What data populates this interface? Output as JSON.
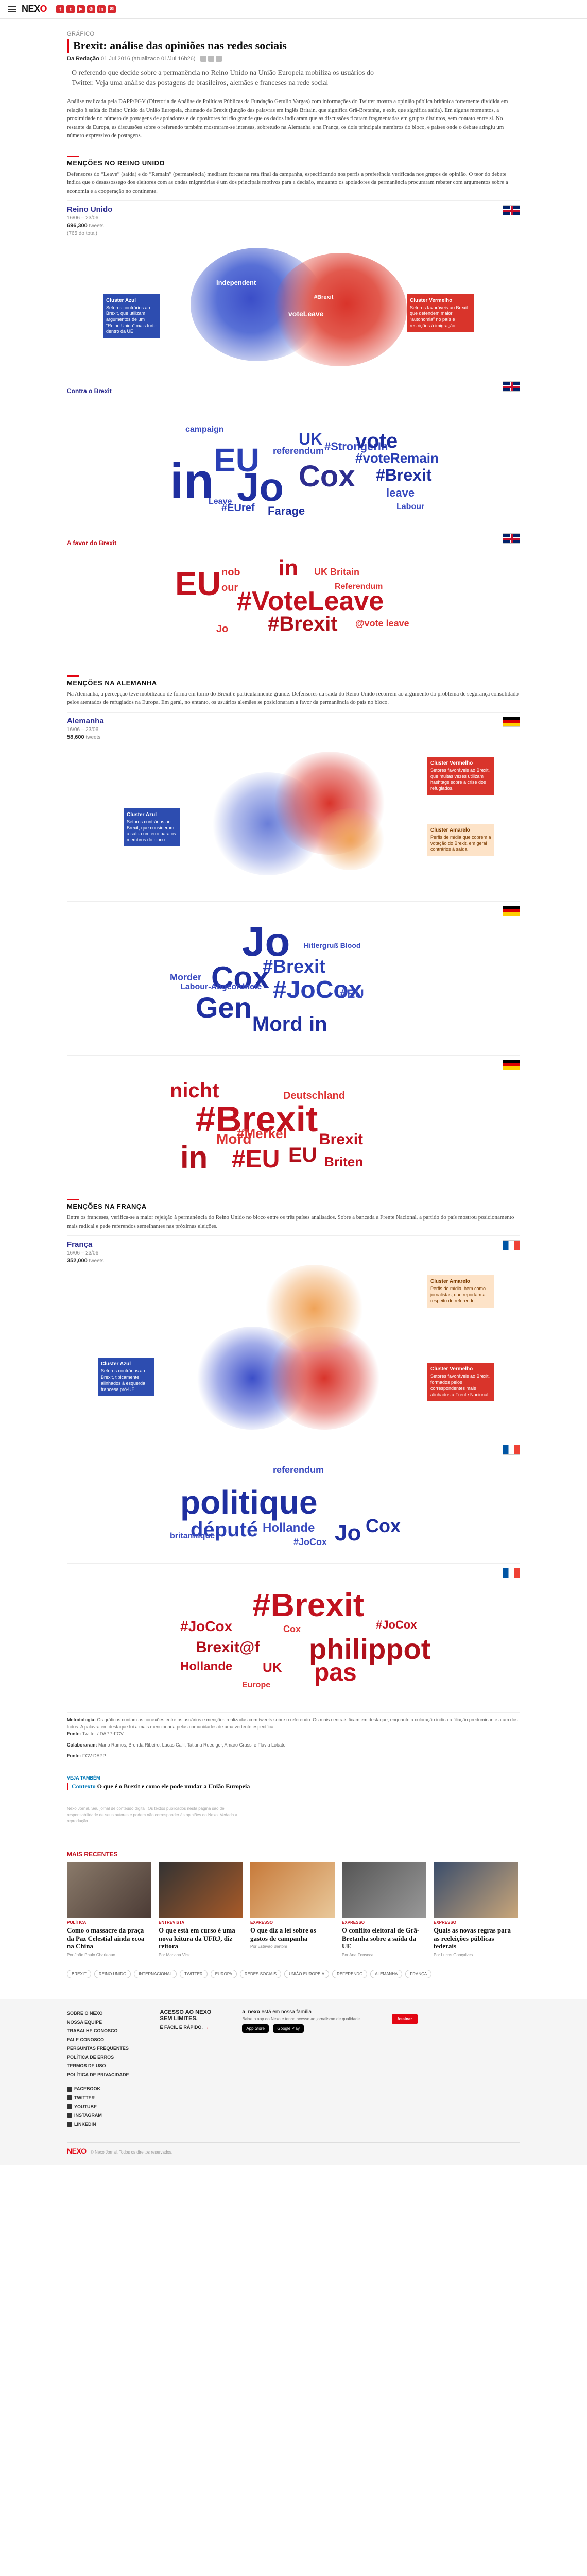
{
  "header": {
    "logo_main": "NEX",
    "logo_accent": "O",
    "social": [
      "f",
      "t",
      "▶",
      "◎",
      "in",
      "✉"
    ]
  },
  "article": {
    "kicker": "GRÁFICO",
    "title": "Brexit: análise das opiniões nas redes sociais",
    "byline_prefix": "Da Redação",
    "byline_date": "01 Jul 2016",
    "byline_updated": "(atualizado 01/Jul 16h26)",
    "lead": "O referendo que decide sobre a permanência no Reino Unido na União Europeia mobiliza os usuários do Twitter. Veja uma análise das postagens de brasileiros, alemães e franceses na rede social",
    "intro": "Análise realizada pela DAPP/FGV (Diretoria de Análise de Políticas Públicas da Fundação Getulio Vargas) com informações do Twitter mostra a opinião pública britânica fortemente dividida em relação à saída do Reino Unido da União Europeia, chamado de Brexit (junção das palavras em inglês Britain, que significa Grã-Bretanha, e exit, que significa saída). Em alguns momentos, a proximidade no número de postagens de apoiadores e de opositores foi tão grande que os dados indicaram que as discussões ficaram fragmentadas em grupos distintos, sem contato entre si. No restante da Europa, as discussões sobre o referendo também mostraram-se intensas, sobretudo na Alemanha e na França, os dois principais membros do bloco, e países onde o debate atingiu um número expressivo de postagens."
  },
  "sections": {
    "uk": {
      "title": "Menções no Reino Unido",
      "text": "Defensores do “Leave” (saída) e do “Remain” (permanência) mediram forças na reta final da campanha, especificando nos perfis a preferência verificada nos grupos de opinião. O teor do debate indica que o desassossego dos eleitores com as ondas migratórias é um dos principais motivos para a decisão, enquanto os apoiadores da permanência procuraram rebater com argumentos sobre a economia e a cooperação no continente.",
      "country": "Reino Unido",
      "period": "16/06 – 23/06",
      "count": "696,300",
      "count_unit": "tweets",
      "count_extra": "(765 do total)",
      "callout_blue_title": "Cluster Azul",
      "callout_blue_text": "Setores contrários ao Brexit, que utilizam argumentos de um “Reino Unido” mais forte dentro da UE",
      "callout_red_title": "Cluster Vermelho",
      "callout_red_text": "Setores favoráveis ao Brexit que defendem maior “autonomia” no país e restrições à imigração.",
      "blob_words": [
        "Independent",
        "voteLeave",
        "#Brexit"
      ],
      "cloud_blue_label": "Contra o Brexit",
      "cloud_red_label": "A favor do Brexit"
    },
    "de": {
      "title": "Menções na Alemanha",
      "text": "Na Alemanha, a percepção teve mobilizado de forma em torno do Brexit é particularmente grande. Defensores da saída do Reino Unido recorrem ao argumento do problema de segurança consolidado pelos atentados de refugiados na Europa. Em geral, no entanto, os usuários alemães se posicionaram a favor da permanência do país no bloco.",
      "country": "Alemanha",
      "period": "16/06 – 23/06",
      "count": "58,600",
      "count_unit": "tweets",
      "callout_blue_title": "Cluster Azul",
      "callout_blue_text": "Setores contrários ao Brexit, que consideram a saída um erro para os membros do bloco",
      "callout_red_title": "Cluster Vermelho",
      "callout_red_text": "Setores favoráveis ao Brexit, que muitas vezes utilizam hashtags sobre a crise dos refugiados.",
      "callout_orange_title": "Cluster Amarelo",
      "callout_orange_text": "Perfis de mídia que cobrem a votação do Brexit, em geral contrários à saída"
    },
    "fr": {
      "title": "Menções na França",
      "text": "Entre os franceses, verifica-se a maior rejeição à permanência do Reino Unido no bloco entre os três países analisados. Sobre a bancada a Frente Nacional, a partido do país mostrou posicionamento mais radical e pede referendos semelhantes nas próximas eleições.",
      "country": "França",
      "period": "16/06 – 23/06",
      "count": "352,000",
      "count_unit": "tweets",
      "callout_blue_title": "Cluster Azul",
      "callout_blue_text": "Setores contrários ao Brexit, tipicamente alinhados à esquerda francesa pró-UE.",
      "callout_red_title": "Cluster Vermelho",
      "callout_red_text": "Setores favoráveis ao Brexit, formados pelos correspondentes mais alinhados à Frente Nacional",
      "callout_orange_title": "Cluster Amarelo",
      "callout_orange_text": "Perfis de mídia, bem como jornalistas, que reportam a respeito do referendo."
    }
  },
  "notes": {
    "methodology_label": "Metodologia:",
    "methodology": "Os gráficos contam as conexões entre os usuários e menções realizadas com tweets sobre o referendo. Os mais centrais ficam em destaque, enquanto a coloração indica a filiação predominante a um dos lados. A palavra em destaque foi a mais mencionada pelas comunidades de uma vertente específica.",
    "source_label": "Fonte:",
    "source": "Twitter / DAPP-FGV",
    "collab_label": "Colaboraram:",
    "collab": "Mario Ramos, Brenda Ribeiro, Lucas Calil, Tatiana Ruediger, Amaro Grassi e Flavia Lobato",
    "credit_label": "Fonte:",
    "credit": "FGV-DAPP"
  },
  "related": {
    "label": "Veja também",
    "item_prefix": "Contexto",
    "item": "O que é o Brexit e como ele pode mudar a União Europeia"
  },
  "fineprint": "Nexo Jornal. Seu jornal de conteúdo digital. Os textos publicados nesta página são de responsabilidade de seus autores e podem não corresponder às opiniões do Nexo. Vedada a reprodução.",
  "more": {
    "title": "Mais recentes",
    "cards": [
      {
        "kicker": "Política",
        "title": "Como o massacre da praça da Paz Celestial ainda ecoa na China",
        "author": "Por João Paulo Charleaux"
      },
      {
        "kicker": "Entrevista",
        "title": "O que está em curso é uma nova leitura da UFRJ, diz reitora",
        "author": "Por Mariana Vick"
      },
      {
        "kicker": "Expresso",
        "title": "O que diz a lei sobre os gastos de campanha",
        "author": "Por Estêvão Bertoni"
      },
      {
        "kicker": "Expresso",
        "title": "O conflito eleitoral de Grã-Bretanha sobre a saída da UE",
        "author": "Por Ana Fonseca"
      },
      {
        "kicker": "Expresso",
        "title": "Quais as novas regras para as reeleições públicas federais",
        "author": "Por Lucas Gonçalves"
      }
    ],
    "tags": [
      "Brexit",
      "Reino Unido",
      "Internacional",
      "Twitter",
      "Europa",
      "Redes sociais",
      "União Europeia",
      "Referendo",
      "Alemanha",
      "França"
    ]
  },
  "footer": {
    "col1": [
      "Sobre o Nexo",
      "Nossa Equipe",
      "Trabalhe Conosco",
      "Fale Conosco",
      "Perguntas Frequentes",
      "Política de Erros",
      "Termos de Uso",
      "Política de Privacidade"
    ],
    "social_labels": [
      "Facebook",
      "Twitter",
      "Youtube",
      "Instagram",
      "Linkedin"
    ],
    "access_line1": "Acesso ao Nexo",
    "access_line2": "sem limites.",
    "access_line3": "É fácil e rápido.",
    "access_arrow": "→",
    "app_brand": "a_nexo",
    "app_line1": "está em nossa família",
    "app_desc": "Baixe o app do Nexo e tenha acesso ao jornalismo de qualidade.",
    "store_apple": "App Store",
    "store_google": "Google Play",
    "subscribe": "Assinar",
    "copyright": "© Nexo Jornal. Todos os direitos reservados."
  }
}
